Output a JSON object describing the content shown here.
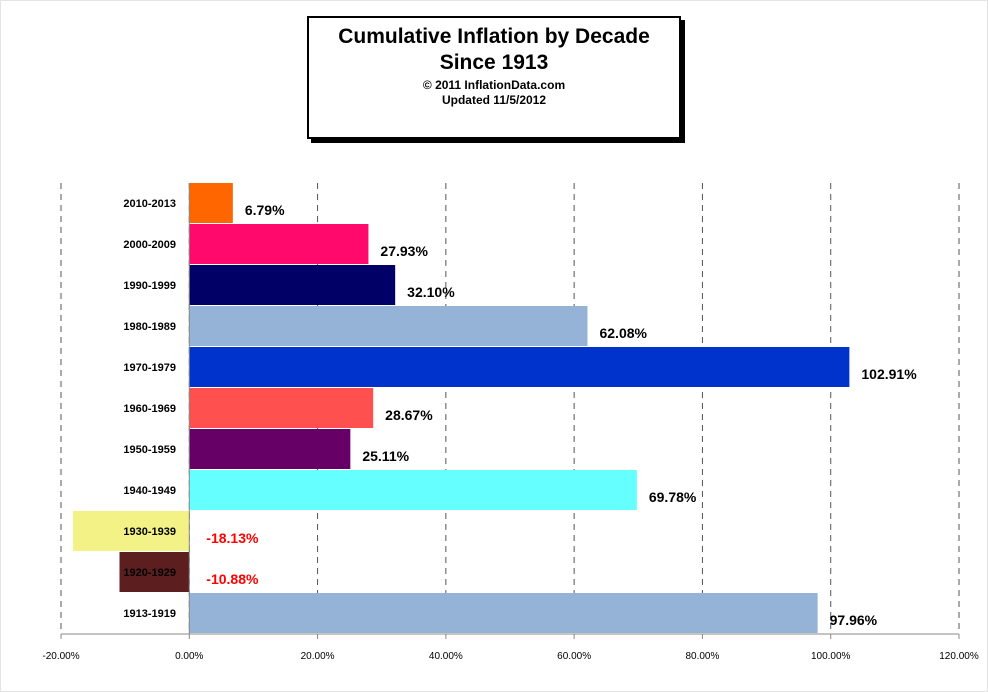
{
  "title": {
    "line1": "Cumulative Inflation by Decade",
    "line2": "Since 1913",
    "copyright": "© 2011  InflationData.com",
    "updated": "Updated  11/5/2012"
  },
  "chart_data": {
    "type": "bar",
    "orientation": "horizontal",
    "title": "Cumulative Inflation by Decade Since 1913",
    "categories": [
      "2010-2013",
      "2000-2009",
      "1990-1999",
      "1980-1989",
      "1970-1979",
      "1960-1969",
      "1950-1959",
      "1940-1949",
      "1930-1939",
      "1920-1929",
      "1913-1919"
    ],
    "values": [
      6.79,
      27.93,
      32.1,
      62.08,
      102.91,
      28.67,
      25.11,
      69.78,
      -18.13,
      -10.88,
      97.96
    ],
    "data_labels": [
      "6.79%",
      "27.93%",
      "32.10%",
      "62.08%",
      "102.91%",
      "28.67%",
      "25.11%",
      "69.78%",
      "-18.13%",
      "-10.88%",
      "97.96%"
    ],
    "colors": [
      "#ff6600",
      "#ff0a6c",
      "#000066",
      "#95b3d7",
      "#0033cc",
      "#ff5050",
      "#660066",
      "#66ffff",
      "#f2f286",
      "#5c1e1e",
      "#95b3d7"
    ],
    "label_colors": [
      "#000000",
      "#000000",
      "#000000",
      "#000000",
      "#000000",
      "#000000",
      "#000000",
      "#000000",
      "#ff0000",
      "#ff0000",
      "#000000"
    ],
    "xlim": [
      -20,
      120
    ],
    "xticks": [
      -20,
      0,
      20,
      40,
      60,
      80,
      100,
      120
    ],
    "xtick_labels": [
      "-20.00%",
      "0.00%",
      "20.00%",
      "40.00%",
      "60.00%",
      "80.00%",
      "100.00%",
      "120.00%"
    ],
    "grid": "vertical dashed",
    "xlabel": "",
    "ylabel": ""
  }
}
